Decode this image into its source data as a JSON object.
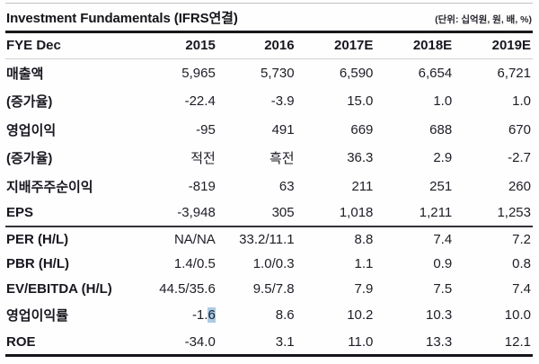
{
  "title": "Investment Fundamentals (IFRS연결)",
  "unit_note": "(단위: 십억원, 원, 배, %)",
  "table": {
    "header": [
      "FYE Dec",
      "2015",
      "2016",
      "2017E",
      "2018E",
      "2019E"
    ],
    "rows": [
      {
        "label": "매출액",
        "values": [
          "5,965",
          "5,730",
          "6,590",
          "6,654",
          "6,721"
        ]
      },
      {
        "label": "(증가율)",
        "values": [
          "-22.4",
          "-3.9",
          "15.0",
          "1.0",
          "1.0"
        ]
      },
      {
        "label": "영업이익",
        "values": [
          "-95",
          "491",
          "669",
          "688",
          "670"
        ]
      },
      {
        "label": "(증가율)",
        "values": [
          "적전",
          "흑전",
          "36.3",
          "2.9",
          "-2.7"
        ]
      },
      {
        "label": "지배주주순이익",
        "values": [
          "-819",
          "63",
          "211",
          "251",
          "260"
        ]
      },
      {
        "label": "EPS",
        "values": [
          "-3,948",
          "305",
          "1,018",
          "1,211",
          "1,253"
        ]
      },
      {
        "label": "PER (H/L)",
        "values": [
          "NA/NA",
          "33.2/11.1",
          "8.8",
          "7.4",
          "7.2"
        ]
      },
      {
        "label": "PBR (H/L)",
        "values": [
          "1.4/0.5",
          "1.0/0.3",
          "1.1",
          "0.9",
          "0.8"
        ]
      },
      {
        "label": "EV/EBITDA (H/L)",
        "values": [
          "44.5/35.6",
          "9.5/7.8",
          "7.9",
          "7.5",
          "7.4"
        ]
      },
      {
        "label": "영업이익률",
        "values": [
          "-1.6",
          "8.6",
          "10.2",
          "10.3",
          "10.0"
        ]
      },
      {
        "label": "ROE",
        "values": [
          "-34.0",
          "3.1",
          "11.0",
          "13.3",
          "12.1"
        ]
      }
    ]
  },
  "selection": {
    "prefix": "-1.",
    "highlighted": "6"
  },
  "colors": {
    "selection_highlight": "#abcbe4",
    "rule_dark": "#17171c",
    "rule_light": "#cfcfcf"
  }
}
